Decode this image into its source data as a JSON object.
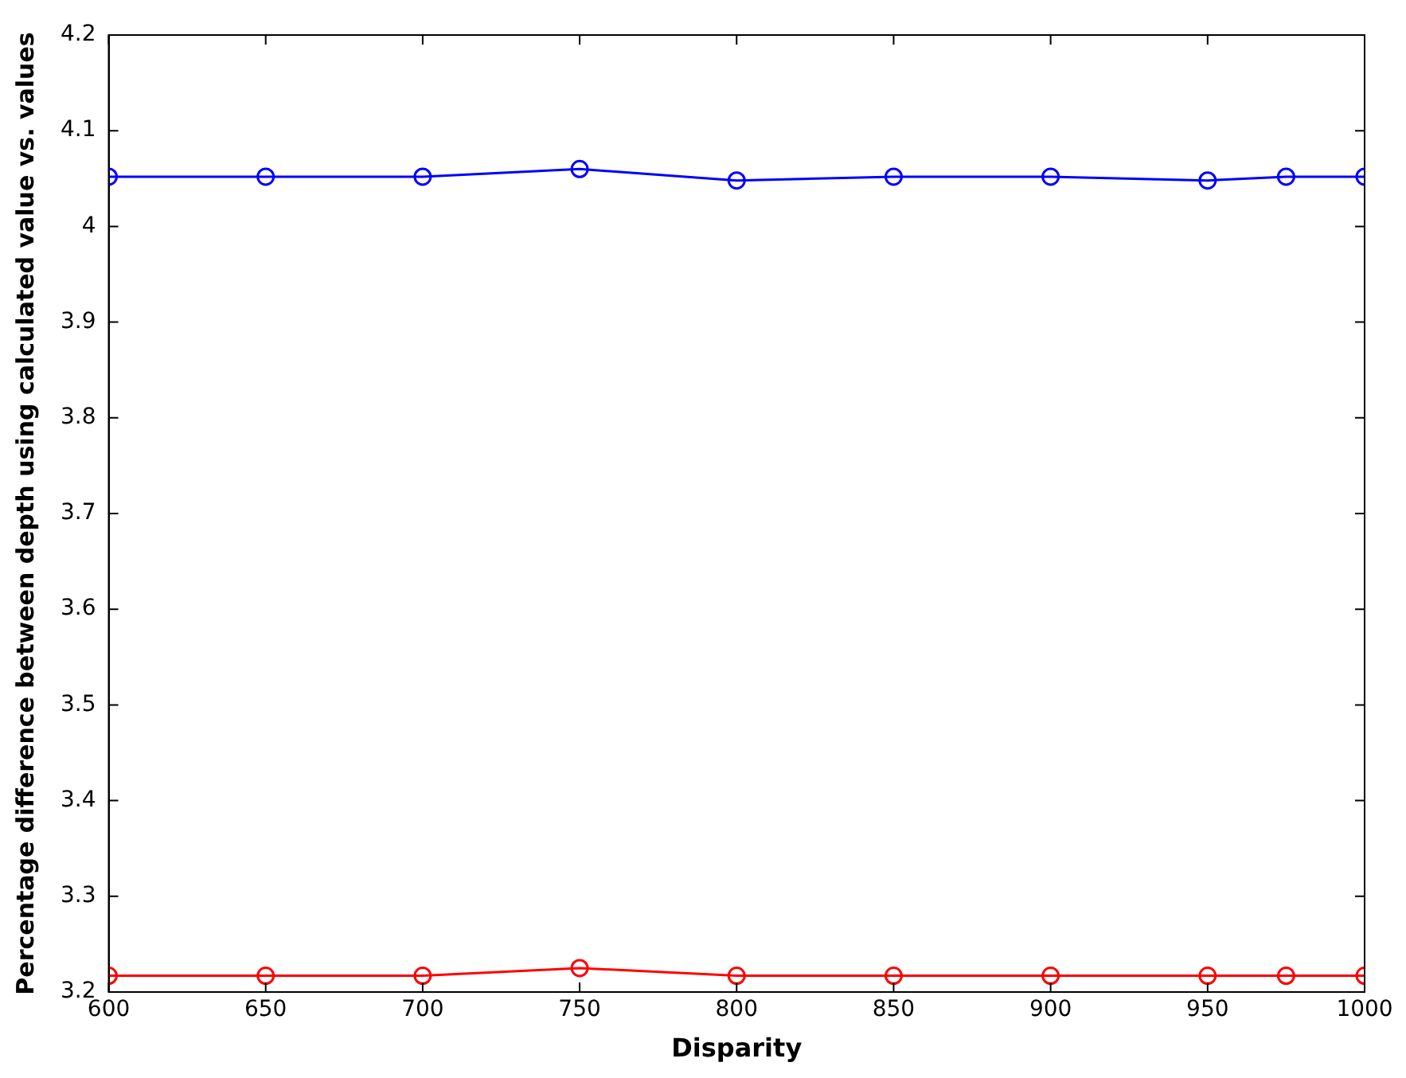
{
  "chart_data": {
    "type": "line",
    "xlabel": "Disparity",
    "ylabel": "Percentage difference between depth using calculated value vs. values",
    "x": [
      600,
      650,
      700,
      750,
      800,
      850,
      900,
      950,
      975,
      1000
    ],
    "series": [
      {
        "color": "#0000ff",
        "values": [
          4.052,
          4.052,
          4.052,
          4.06,
          4.048,
          4.052,
          4.052,
          4.048,
          4.052,
          4.052
        ]
      },
      {
        "color": "#ff0000",
        "values": [
          3.217,
          3.217,
          3.217,
          3.225,
          3.217,
          3.217,
          3.217,
          3.217,
          3.217,
          3.217
        ]
      }
    ],
    "xlim": [
      600,
      1000
    ],
    "xticks": [
      600,
      650,
      700,
      750,
      800,
      850,
      900,
      950,
      1000
    ],
    "ylim": [
      3.2,
      4.2
    ],
    "yticks": [
      3.2,
      3.3,
      3.4,
      3.5,
      3.6,
      3.7,
      3.8,
      3.9,
      4,
      4.1,
      4.2
    ],
    "grid": false,
    "legend": false,
    "marker": "circle",
    "line_style": "solid"
  }
}
